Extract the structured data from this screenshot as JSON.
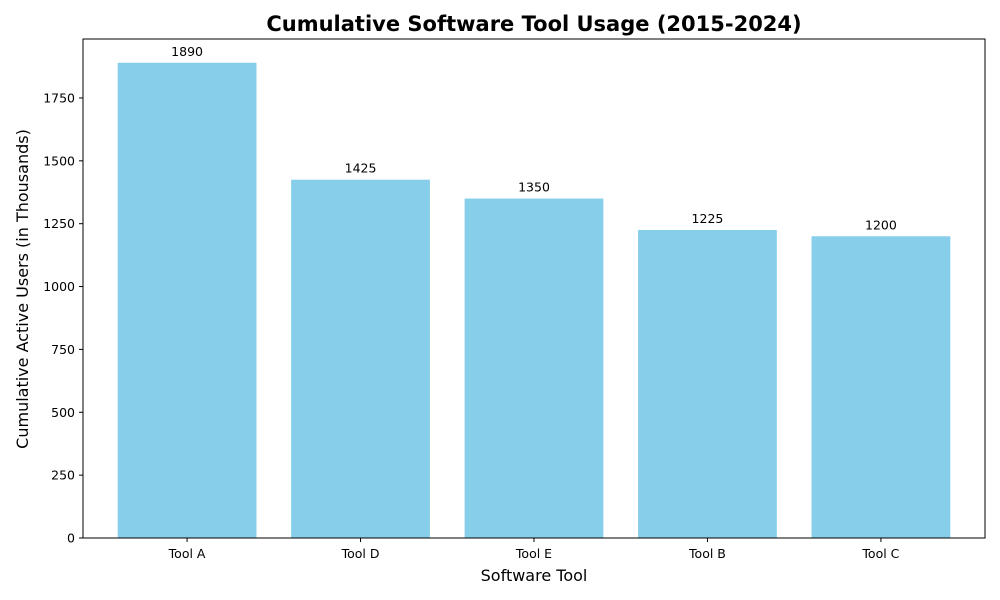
{
  "chart_data": {
    "type": "bar",
    "title": "Cumulative Software Tool Usage (2015-2024)",
    "xlabel": "Software Tool",
    "ylabel": "Cumulative Active Users (in Thousands)",
    "categories": [
      "Tool A",
      "Tool D",
      "Tool E",
      "Tool B",
      "Tool C"
    ],
    "values": [
      1890,
      1425,
      1350,
      1225,
      1200
    ],
    "data_labels": [
      "1890",
      "1425",
      "1350",
      "1225",
      "1200"
    ],
    "ylim": [
      0,
      1984.5
    ],
    "yticks": [
      0,
      250,
      500,
      750,
      1000,
      1250,
      1500,
      1750
    ],
    "ytick_labels": [
      "0",
      "250",
      "500",
      "750",
      "1000",
      "1250",
      "1500",
      "1750"
    ],
    "bar_color": "#87ceeb",
    "grid": false,
    "legend": "none"
  }
}
